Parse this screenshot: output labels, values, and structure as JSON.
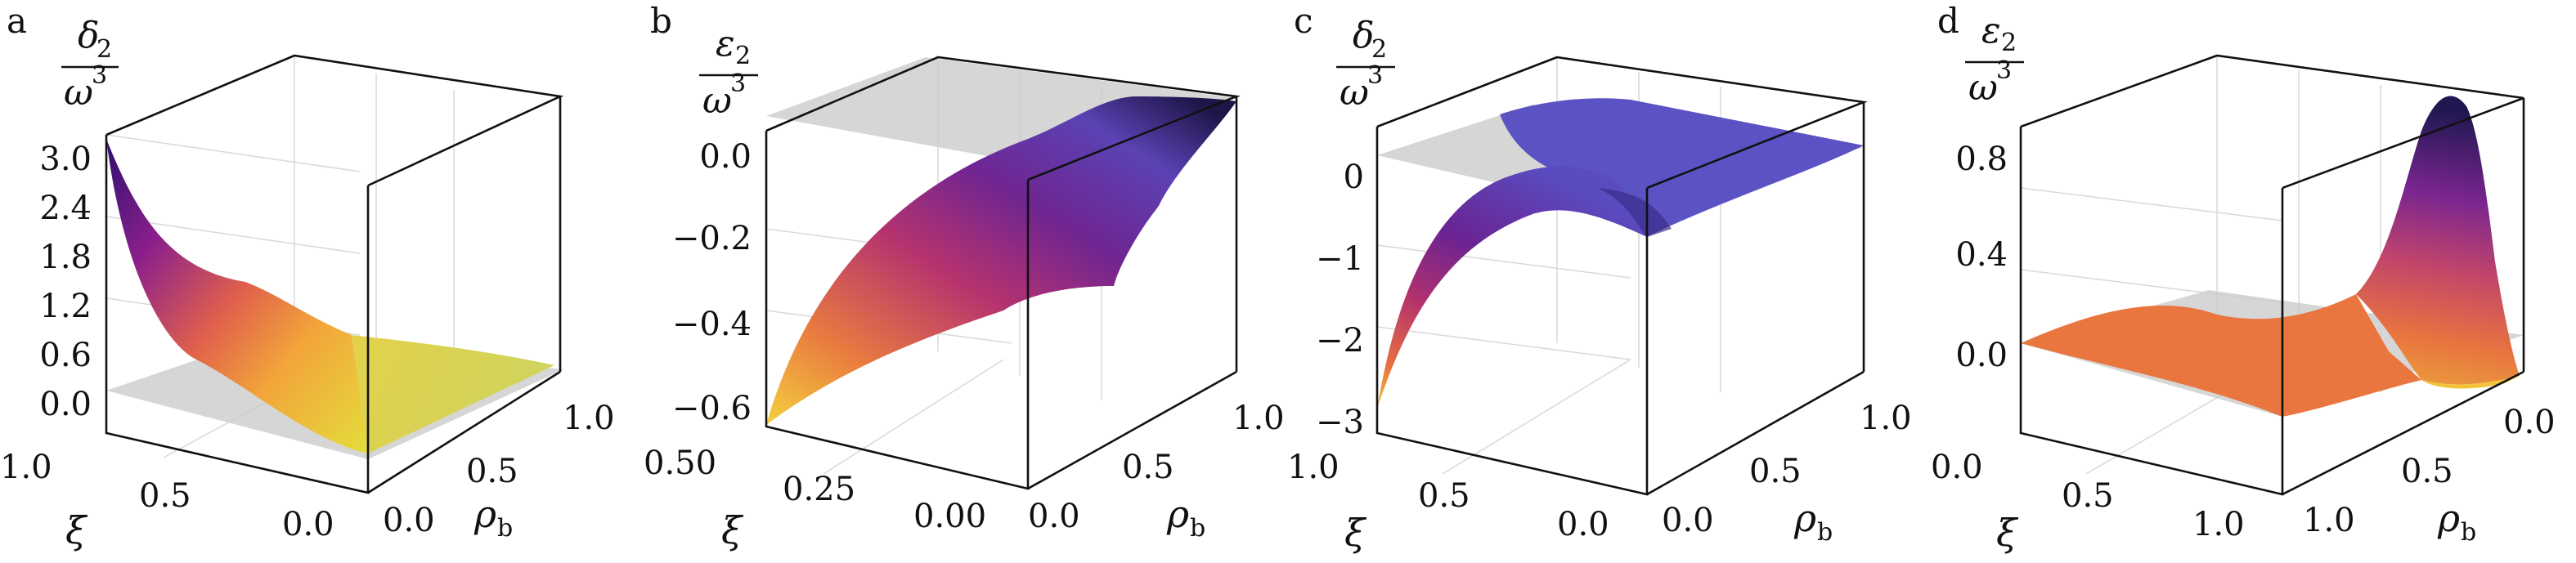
{
  "colors": {
    "plane": "#cfcfcf",
    "box": "#111111",
    "colormap": "plasma"
  },
  "chart_data": [
    {
      "type": "surface3d",
      "panel_letter": "a",
      "zlabel": "δ₂ / ω³",
      "zlabel_num": "δ",
      "zlabel_num_sub": "2",
      "zlabel_den": "ω",
      "zlabel_den_sup": "3",
      "xlabel": "ξ",
      "ylabel": "ρ",
      "ylabel_sub": "b",
      "xlim": [
        0.0,
        1.0
      ],
      "ylim": [
        0.0,
        1.0
      ],
      "zlim": [
        0.0,
        3.0
      ],
      "zticks": [
        "0.0",
        "0.6",
        "1.2",
        "1.8",
        "2.4",
        "3.0"
      ],
      "xticks": [
        "1.0",
        "0.5",
        "0.0"
      ],
      "yticks": [
        "0.0",
        "0.5",
        "1.0"
      ],
      "reference_plane_z": 0,
      "grid": true,
      "surface": {
        "corner_max_z": 3.0,
        "flat_z": 0.05
      }
    },
    {
      "type": "surface3d",
      "panel_letter": "b",
      "zlabel": "ε₂ / ω³",
      "zlabel_num": "ε",
      "zlabel_num_sub": "2",
      "zlabel_den": "ω",
      "zlabel_den_sup": "3",
      "xlabel": "ξ",
      "ylabel": "ρ",
      "ylabel_sub": "b",
      "xlim": [
        0.0,
        0.5
      ],
      "ylim": [
        0.0,
        1.0
      ],
      "zlim": [
        -0.6,
        0.05
      ],
      "zticks": [
        "0.0",
        "−0.2",
        "−0.4",
        "−0.6"
      ],
      "xticks": [
        "0.50",
        "0.25",
        "0.00"
      ],
      "yticks": [
        "0.0",
        "0.5",
        "1.0"
      ],
      "reference_plane_z": 0,
      "grid": true,
      "surface": {
        "min_z": -0.6,
        "max_z": 0.02
      }
    },
    {
      "type": "surface3d",
      "panel_letter": "c",
      "zlabel": "δ₂ / ω³",
      "zlabel_num": "δ",
      "zlabel_num_sub": "2",
      "zlabel_den": "ω",
      "zlabel_den_sup": "3",
      "xlabel": "ξ",
      "ylabel": "ρ",
      "ylabel_sub": "b",
      "xlim": [
        0.0,
        1.0
      ],
      "ylim": [
        0.0,
        1.0
      ],
      "zlim": [
        -3,
        0.5
      ],
      "zticks": [
        "0",
        "−1",
        "−2",
        "−3"
      ],
      "xticks": [
        "1.0",
        "0.5",
        "0.0"
      ],
      "yticks": [
        "0.0",
        "0.5",
        "1.0"
      ],
      "reference_plane_z": 0,
      "grid": true,
      "surface": {
        "min_z": -2.7,
        "max_z": 0.35
      }
    },
    {
      "type": "surface3d",
      "panel_letter": "d",
      "zlabel": "ε₂ / ω³",
      "zlabel_num": "ε",
      "zlabel_num_sub": "2",
      "zlabel_den": "ω",
      "zlabel_den_sup": "3",
      "xlabel": "ξ",
      "ylabel": "ρ",
      "ylabel_sub": "b",
      "xlim": [
        0.0,
        1.0
      ],
      "ylim": [
        0.0,
        1.0
      ],
      "zlim": [
        -0.1,
        0.9
      ],
      "zticks": [
        "0.8",
        "0.4",
        "0.0"
      ],
      "xticks": [
        "0.0",
        "0.5",
        "1.0"
      ],
      "yticks": [
        "1.0",
        "0.5",
        "0.0"
      ],
      "reference_plane_z": 0,
      "grid": true,
      "surface": {
        "max_z": 0.85,
        "flat_z": 0.02
      }
    }
  ]
}
